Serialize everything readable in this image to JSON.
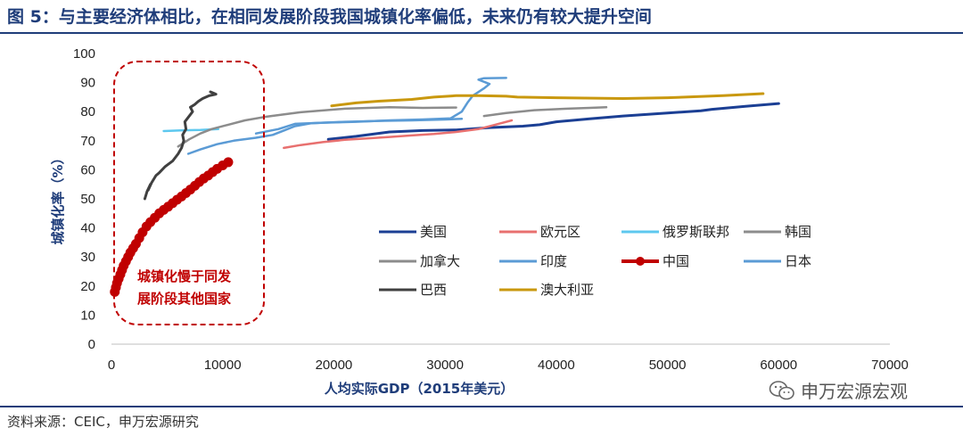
{
  "header": {
    "title": "图 5：与主要经济体相比，在相同发展阶段我国城镇化率偏低，未来仍有较大提升空间"
  },
  "footer": {
    "source": "资料来源：CEIC，申万宏源研究",
    "watermark": "申万宏源宏观"
  },
  "chart_data": {
    "type": "line",
    "xlabel": "人均实际GDP（2015年美元）",
    "ylabel": "城镇化率（%）",
    "xlim": [
      0,
      70000
    ],
    "ylim": [
      0,
      100
    ],
    "xticks": [
      "0",
      "10000",
      "20000",
      "30000",
      "40000",
      "50000",
      "60000",
      "70000"
    ],
    "yticks": [
      "0",
      "10",
      "20",
      "30",
      "40",
      "50",
      "60",
      "70",
      "80",
      "90",
      "100"
    ],
    "annotation": {
      "lines": [
        "城镇化慢于同发",
        "展阶段其他国家"
      ]
    },
    "series": [
      {
        "name": "美国",
        "color": "#1b3f94",
        "width": 3,
        "x": [
          19500,
          22000,
          25000,
          28000,
          31000,
          34000,
          37000,
          38500,
          40000,
          43000,
          46000,
          50000,
          53000,
          54000,
          57000,
          60000
        ],
        "y": [
          70.5,
          71.5,
          73.0,
          73.5,
          73.7,
          74.5,
          75.0,
          75.5,
          76.5,
          77.5,
          78.5,
          79.5,
          80.3,
          80.8,
          81.8,
          82.8
        ]
      },
      {
        "name": "欧元区",
        "color": "#e8706f",
        "width": 2.5,
        "x": [
          15500,
          17000,
          19000,
          21000,
          23000,
          25000,
          27000,
          29000,
          31000,
          33000,
          34500,
          36000
        ],
        "y": [
          67.5,
          68.5,
          69.5,
          70.3,
          70.8,
          71.3,
          71.8,
          72.3,
          73.0,
          74.0,
          75.5,
          77.0
        ]
      },
      {
        "name": "俄罗斯联邦",
        "color": "#5dc8ef",
        "width": 2.5,
        "x": [
          4700,
          6500,
          8000,
          9600
        ],
        "y": [
          73.3,
          73.6,
          73.7,
          74.0
        ]
      },
      {
        "name": "韩国",
        "color": "#8c8c8c",
        "width": 2.5,
        "x": [
          33500,
          35500,
          38000,
          41000,
          43000,
          44500
        ],
        "y": [
          78.5,
          79.5,
          80.5,
          81.0,
          81.3,
          81.5
        ]
      },
      {
        "name": "加拿大",
        "color": "#8c8c8c",
        "width": 2.5,
        "x": [
          6000,
          7000,
          8000,
          9000,
          10500,
          12000,
          14000,
          17000,
          21000,
          25000,
          28000,
          31000
        ],
        "y": [
          68.0,
          70.5,
          72.5,
          74.0,
          75.5,
          77.0,
          78.3,
          79.8,
          81.0,
          81.5,
          81.3,
          81.4
        ]
      },
      {
        "name": "印度",
        "color": "#5b9bd5",
        "width": 2.5,
        "x": [
          13000,
          15000,
          16500,
          19000,
          22000,
          25000,
          28000,
          30500,
          31500,
          32000,
          32500,
          33500,
          34000,
          33000,
          33500,
          35500
        ],
        "y": [
          72.5,
          74.0,
          75.8,
          76.2,
          76.5,
          77.0,
          77.3,
          77.7,
          80.0,
          83.0,
          85.5,
          88.0,
          89.5,
          91.0,
          91.5,
          91.6
        ]
      },
      {
        "name": "中国",
        "color": "#c00000",
        "width": 4,
        "markers": true,
        "x": [
          300,
          400,
          500,
          650,
          800,
          950,
          1100,
          1300,
          1500,
          1700,
          1950,
          2200,
          2500,
          2800,
          3150,
          3500,
          3900,
          4300,
          4700,
          5100,
          5500,
          5900,
          6300,
          6700,
          7100,
          7500,
          7900,
          8300,
          8700,
          9100,
          9500,
          10000,
          10500
        ],
        "y": [
          18.0,
          19.5,
          21.0,
          22.5,
          24.0,
          25.5,
          27.0,
          28.5,
          30.0,
          31.5,
          33.0,
          34.5,
          36.5,
          38.5,
          40.5,
          42.0,
          43.5,
          45.0,
          46.2,
          47.3,
          48.5,
          49.7,
          50.8,
          52.0,
          53.2,
          54.5,
          55.8,
          57.0,
          58.0,
          59.2,
          60.3,
          61.5,
          62.6
        ]
      },
      {
        "name": "日本",
        "color": "#5b9bd5",
        "width": 2.5,
        "x": [
          6900,
          8000,
          9500,
          11000,
          13000,
          14500,
          15500,
          16500,
          18000,
          21000,
          24000,
          27000,
          30000,
          31500
        ],
        "y": [
          65.5,
          67.0,
          68.8,
          70.0,
          71.0,
          72.0,
          73.5,
          75.0,
          76.0,
          76.5,
          76.8,
          77.0,
          77.3,
          77.5
        ]
      },
      {
        "name": "巴西",
        "color": "#404040",
        "width": 3,
        "x": [
          3000,
          3200,
          3500,
          3300,
          3600,
          4000,
          4300,
          4800,
          5500,
          6000,
          6300,
          6500,
          6400,
          6700,
          6600,
          7000,
          7300,
          7100,
          7500,
          7800,
          8200,
          8800,
          9400,
          8900
        ],
        "y": [
          50.0,
          52.5,
          55.0,
          53.0,
          55.5,
          58.0,
          59.0,
          61.0,
          63.0,
          65.5,
          67.5,
          70.0,
          72.0,
          74.0,
          76.5,
          78.5,
          80.0,
          81.5,
          82.5,
          83.5,
          84.5,
          85.5,
          86.0,
          86.8
        ]
      },
      {
        "name": "澳大利亚",
        "color": "#c9980e",
        "width": 3,
        "x": [
          19800,
          22000,
          24000,
          27000,
          29000,
          31000,
          33000,
          35500,
          36500,
          40000,
          46000,
          50000,
          55000,
          58600
        ],
        "y": [
          82.0,
          83.0,
          83.6,
          84.2,
          85.0,
          85.5,
          85.5,
          85.3,
          85.0,
          84.8,
          84.5,
          84.8,
          85.5,
          86.2
        ]
      }
    ]
  }
}
